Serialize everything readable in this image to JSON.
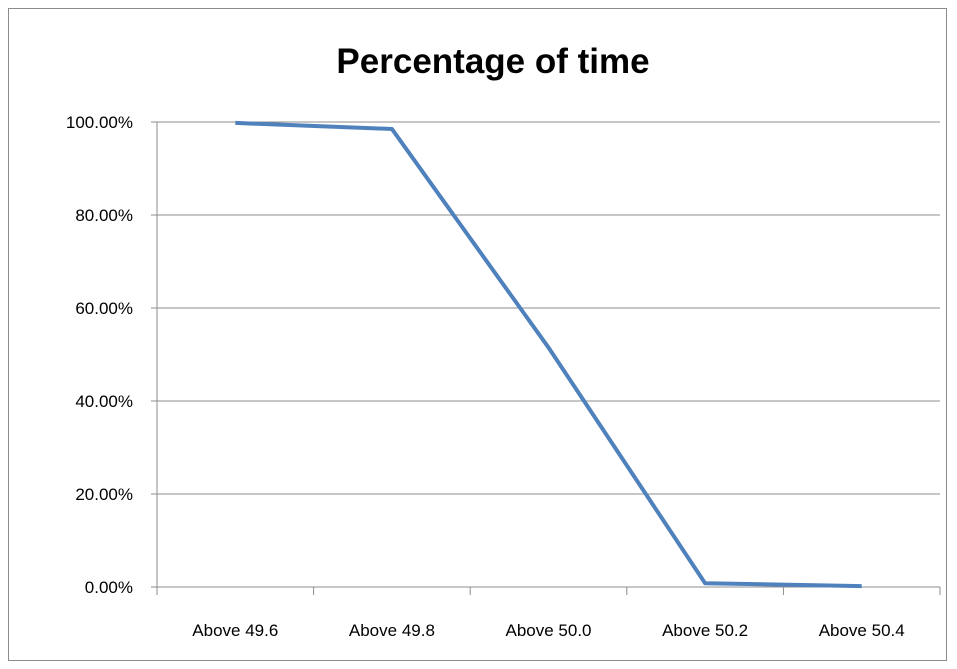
{
  "chart_data": {
    "type": "line",
    "title": "Percentage of time",
    "xlabel": "",
    "ylabel": "",
    "categories": [
      "Above 49.6",
      "Above 49.8",
      "Above 50.0",
      "Above 50.2",
      "Above 50.4"
    ],
    "series": [
      {
        "values": [
          99.8,
          98.5,
          51.5,
          0.8,
          0.2
        ],
        "color": "#4f81bd"
      }
    ],
    "ylim": [
      0,
      100
    ],
    "yticks": [
      0,
      20,
      40,
      60,
      80,
      100
    ],
    "ytick_labels": [
      "0.00%",
      "20.00%",
      "40.00%",
      "60.00%",
      "80.00%",
      "100.00%"
    ],
    "grid": true,
    "legend": "none"
  }
}
